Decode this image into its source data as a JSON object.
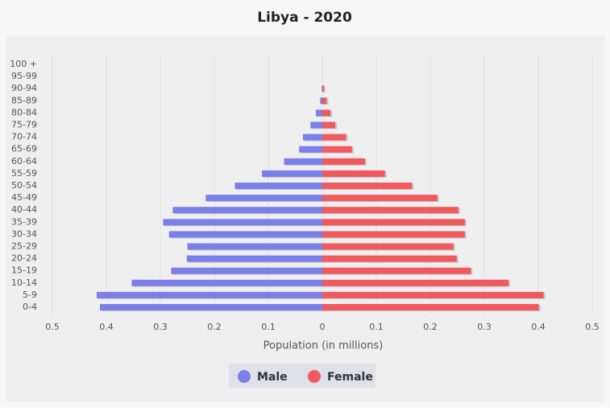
{
  "chart_data": {
    "type": "pyramid",
    "title": "Libya - 2020",
    "x_label": "Population (in millions)",
    "categories": [
      "0-4",
      "5-9",
      "10-14",
      "15-19",
      "20-24",
      "25-29",
      "30-34",
      "35-39",
      "40-44",
      "45-49",
      "50-54",
      "55-59",
      "60-64",
      "65-69",
      "70-74",
      "75-79",
      "80-84",
      "85-89",
      "90-94",
      "95-99",
      "100 +"
    ],
    "series": [
      {
        "name": "Male",
        "color": "#7b7fe8",
        "side": "left",
        "values": [
          0.412,
          0.418,
          0.353,
          0.28,
          0.251,
          0.25,
          0.284,
          0.295,
          0.277,
          0.216,
          0.162,
          0.112,
          0.071,
          0.043,
          0.036,
          0.022,
          0.012,
          0.004,
          0.001,
          0,
          0
        ]
      },
      {
        "name": "Female",
        "color": "#f0595e",
        "side": "right",
        "values": [
          0.401,
          0.41,
          0.345,
          0.275,
          0.249,
          0.243,
          0.264,
          0.264,
          0.252,
          0.213,
          0.166,
          0.116,
          0.079,
          0.055,
          0.044,
          0.024,
          0.015,
          0.008,
          0.003,
          0,
          0
        ]
      }
    ],
    "xlim": [
      -0.5,
      0.5
    ],
    "xticks": [
      {
        "value": -0.5,
        "label": "0.5"
      },
      {
        "value": -0.4,
        "label": "0.4"
      },
      {
        "value": -0.3,
        "label": "0.3"
      },
      {
        "value": -0.2,
        "label": "0.2"
      },
      {
        "value": -0.1,
        "label": "0.1"
      },
      0,
      0.1,
      0.2,
      0.3,
      0.4,
      0.5
    ],
    "grid": true
  }
}
